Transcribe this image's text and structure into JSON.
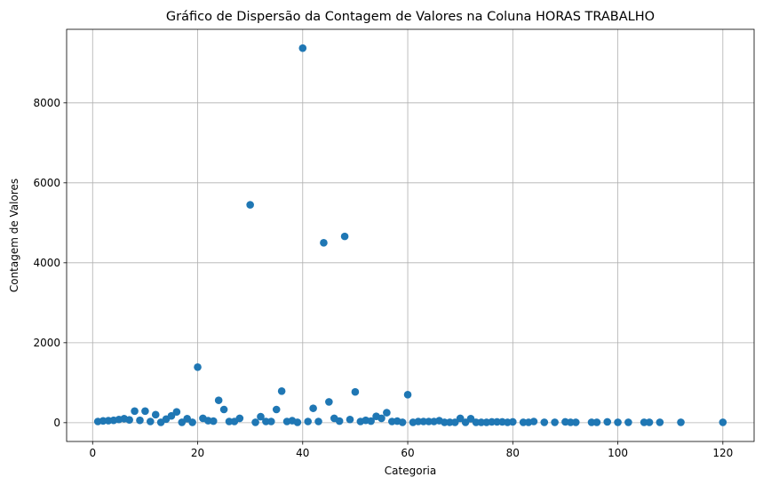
{
  "chart_data": {
    "type": "scatter",
    "title": "Gráfico de Dispersão da Contagem de Valores na Coluna HORAS TRABALHO",
    "xlabel": "Categoria",
    "ylabel": "Contagem de Valores",
    "xlim": [
      -4.95,
      125.95
    ],
    "ylim": [
      -470,
      9840
    ],
    "xticks": [
      0,
      20,
      40,
      60,
      80,
      100,
      120
    ],
    "yticks": [
      0,
      2000,
      4000,
      6000,
      8000
    ],
    "grid": true,
    "color": "#1f77b4",
    "points": [
      {
        "x": 1,
        "y": 30
      },
      {
        "x": 2,
        "y": 45
      },
      {
        "x": 3,
        "y": 50
      },
      {
        "x": 4,
        "y": 60
      },
      {
        "x": 5,
        "y": 80
      },
      {
        "x": 6,
        "y": 100
      },
      {
        "x": 7,
        "y": 70
      },
      {
        "x": 8,
        "y": 290
      },
      {
        "x": 9,
        "y": 60
      },
      {
        "x": 10,
        "y": 290
      },
      {
        "x": 11,
        "y": 30
      },
      {
        "x": 12,
        "y": 200
      },
      {
        "x": 13,
        "y": 10
      },
      {
        "x": 14,
        "y": 90
      },
      {
        "x": 15,
        "y": 170
      },
      {
        "x": 16,
        "y": 270
      },
      {
        "x": 17,
        "y": 10
      },
      {
        "x": 18,
        "y": 100
      },
      {
        "x": 19,
        "y": 10
      },
      {
        "x": 20,
        "y": 1390
      },
      {
        "x": 21,
        "y": 110
      },
      {
        "x": 22,
        "y": 50
      },
      {
        "x": 23,
        "y": 40
      },
      {
        "x": 24,
        "y": 560
      },
      {
        "x": 25,
        "y": 330
      },
      {
        "x": 26,
        "y": 30
      },
      {
        "x": 27,
        "y": 30
      },
      {
        "x": 28,
        "y": 110
      },
      {
        "x": 30,
        "y": 5450
      },
      {
        "x": 31,
        "y": 10
      },
      {
        "x": 32,
        "y": 150
      },
      {
        "x": 33,
        "y": 30
      },
      {
        "x": 34,
        "y": 30
      },
      {
        "x": 35,
        "y": 330
      },
      {
        "x": 36,
        "y": 790
      },
      {
        "x": 37,
        "y": 30
      },
      {
        "x": 38,
        "y": 50
      },
      {
        "x": 39,
        "y": 10
      },
      {
        "x": 40,
        "y": 9370
      },
      {
        "x": 41,
        "y": 30
      },
      {
        "x": 42,
        "y": 360
      },
      {
        "x": 43,
        "y": 30
      },
      {
        "x": 44,
        "y": 4500
      },
      {
        "x": 45,
        "y": 520
      },
      {
        "x": 46,
        "y": 110
      },
      {
        "x": 47,
        "y": 40
      },
      {
        "x": 48,
        "y": 4660
      },
      {
        "x": 49,
        "y": 80
      },
      {
        "x": 50,
        "y": 770
      },
      {
        "x": 51,
        "y": 30
      },
      {
        "x": 52,
        "y": 60
      },
      {
        "x": 53,
        "y": 40
      },
      {
        "x": 54,
        "y": 160
      },
      {
        "x": 55,
        "y": 110
      },
      {
        "x": 56,
        "y": 250
      },
      {
        "x": 57,
        "y": 30
      },
      {
        "x": 58,
        "y": 40
      },
      {
        "x": 59,
        "y": 10
      },
      {
        "x": 60,
        "y": 700
      },
      {
        "x": 61,
        "y": 10
      },
      {
        "x": 62,
        "y": 30
      },
      {
        "x": 63,
        "y": 30
      },
      {
        "x": 64,
        "y": 30
      },
      {
        "x": 65,
        "y": 30
      },
      {
        "x": 66,
        "y": 50
      },
      {
        "x": 67,
        "y": 10
      },
      {
        "x": 68,
        "y": 10
      },
      {
        "x": 69,
        "y": 10
      },
      {
        "x": 70,
        "y": 110
      },
      {
        "x": 71,
        "y": 10
      },
      {
        "x": 72,
        "y": 100
      },
      {
        "x": 73,
        "y": 10
      },
      {
        "x": 74,
        "y": 10
      },
      {
        "x": 75,
        "y": 10
      },
      {
        "x": 76,
        "y": 20
      },
      {
        "x": 77,
        "y": 20
      },
      {
        "x": 78,
        "y": 20
      },
      {
        "x": 79,
        "y": 10
      },
      {
        "x": 80,
        "y": 20
      },
      {
        "x": 82,
        "y": 10
      },
      {
        "x": 83,
        "y": 10
      },
      {
        "x": 84,
        "y": 30
      },
      {
        "x": 86,
        "y": 10
      },
      {
        "x": 88,
        "y": 10
      },
      {
        "x": 90,
        "y": 20
      },
      {
        "x": 91,
        "y": 10
      },
      {
        "x": 92,
        "y": 10
      },
      {
        "x": 95,
        "y": 10
      },
      {
        "x": 96,
        "y": 10
      },
      {
        "x": 98,
        "y": 20
      },
      {
        "x": 100,
        "y": 10
      },
      {
        "x": 102,
        "y": 10
      },
      {
        "x": 105,
        "y": 10
      },
      {
        "x": 106,
        "y": 10
      },
      {
        "x": 108,
        "y": 10
      },
      {
        "x": 112,
        "y": 10
      },
      {
        "x": 120,
        "y": 10
      }
    ]
  }
}
